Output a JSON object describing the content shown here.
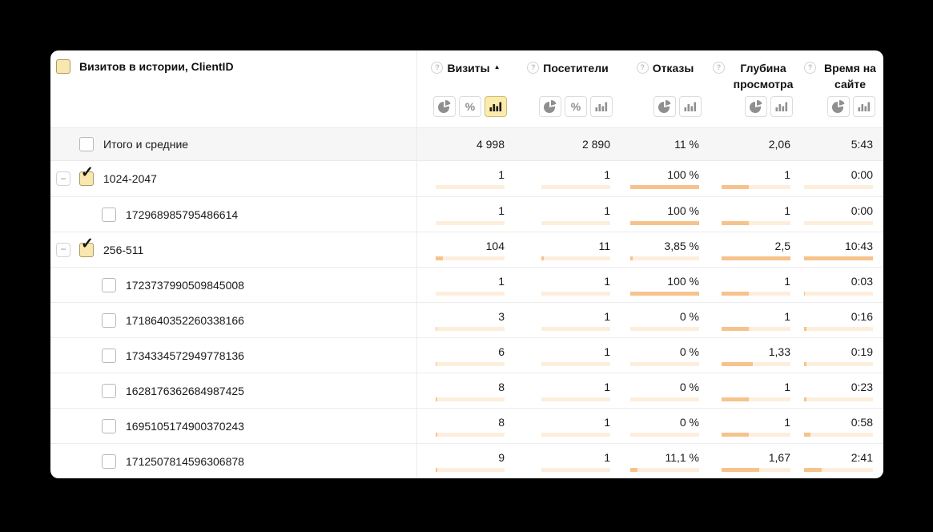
{
  "page": {
    "background": "#000000"
  },
  "icons": {
    "help_glyph": "?",
    "sort_asc_glyph": "▲",
    "minus_glyph": "−",
    "percent_glyph": "%",
    "checkmark_glyph": "✓"
  },
  "colors": {
    "bar_fill": "#f6c38c",
    "bar_track": "#fdeedc",
    "active_toggle_bg": "#fcecab",
    "active_toggle_border": "#cdbd74",
    "checked_checkbox_bg": "#f8e8b0",
    "totals_bg": "#f6f6f6",
    "row_border": "#ececec"
  },
  "panel": {
    "title": "Визитов в истории, ClientID",
    "title_checkbox_checked": true,
    "columns": [
      {
        "id": "visits",
        "label": "Визиты",
        "help_icon": true,
        "sort": "asc",
        "toggles": [
          {
            "type": "pie",
            "active": false
          },
          {
            "type": "percent",
            "active": false
          },
          {
            "type": "bars",
            "active": true
          }
        ]
      },
      {
        "id": "visitors",
        "label": "Посетители",
        "help_icon": true,
        "sort": null,
        "toggles": [
          {
            "type": "pie",
            "active": false
          },
          {
            "type": "percent",
            "active": false
          },
          {
            "type": "bars",
            "active": false
          }
        ]
      },
      {
        "id": "bounces",
        "label": "Отказы",
        "help_icon": true,
        "sort": null,
        "toggles": [
          {
            "type": "pie",
            "active": false
          },
          {
            "type": "bars",
            "active": false
          }
        ]
      },
      {
        "id": "depth",
        "label": "Глубина просмотра",
        "help_icon": true,
        "sort": null,
        "toggles": [
          {
            "type": "pie",
            "active": false
          },
          {
            "type": "bars",
            "active": false
          }
        ]
      },
      {
        "id": "time",
        "label": "Время на сайте",
        "help_icon": true,
        "sort": null,
        "toggles": [
          {
            "type": "pie",
            "active": false
          },
          {
            "type": "bars",
            "active": false
          }
        ]
      }
    ],
    "totals_row": {
      "label": "Итого и средние",
      "checkbox_checked": false,
      "values": [
        "4 998",
        "2 890",
        "11 %",
        "2,06",
        "5:43"
      ]
    },
    "rows": [
      {
        "level": "group",
        "expandable": true,
        "checked": true,
        "label": "1024-2047",
        "cells": [
          {
            "value": "1",
            "fill": 0
          },
          {
            "value": "1",
            "fill": 0
          },
          {
            "value": "100 %",
            "fill": 100
          },
          {
            "value": "1",
            "fill": 40
          },
          {
            "value": "0:00",
            "fill": 0
          }
        ]
      },
      {
        "level": "child",
        "expandable": false,
        "checked": false,
        "label": "172968985795486614",
        "cells": [
          {
            "value": "1",
            "fill": 0
          },
          {
            "value": "1",
            "fill": 0
          },
          {
            "value": "100 %",
            "fill": 100
          },
          {
            "value": "1",
            "fill": 40
          },
          {
            "value": "0:00",
            "fill": 0
          }
        ]
      },
      {
        "level": "group",
        "expandable": true,
        "checked": true,
        "label": "256-511",
        "cells": [
          {
            "value": "104",
            "fill": 11
          },
          {
            "value": "11",
            "fill": 3
          },
          {
            "value": "3,85 %",
            "fill": 4
          },
          {
            "value": "2,5",
            "fill": 100
          },
          {
            "value": "10:43",
            "fill": 100
          }
        ]
      },
      {
        "level": "child",
        "expandable": false,
        "checked": false,
        "label": "1723737990509845008",
        "cells": [
          {
            "value": "1",
            "fill": 0
          },
          {
            "value": "1",
            "fill": 0
          },
          {
            "value": "100 %",
            "fill": 100
          },
          {
            "value": "1",
            "fill": 40
          },
          {
            "value": "0:03",
            "fill": 1
          }
        ]
      },
      {
        "level": "child",
        "expandable": false,
        "checked": false,
        "label": "1718640352260338166",
        "cells": [
          {
            "value": "3",
            "fill": 1
          },
          {
            "value": "1",
            "fill": 0
          },
          {
            "value": "0 %",
            "fill": 0
          },
          {
            "value": "1",
            "fill": 40
          },
          {
            "value": "0:16",
            "fill": 3
          }
        ]
      },
      {
        "level": "child",
        "expandable": false,
        "checked": false,
        "label": "1734334572949778136",
        "cells": [
          {
            "value": "6",
            "fill": 1
          },
          {
            "value": "1",
            "fill": 0
          },
          {
            "value": "0 %",
            "fill": 0
          },
          {
            "value": "1,33",
            "fill": 45
          },
          {
            "value": "0:19",
            "fill": 3
          }
        ]
      },
      {
        "level": "child",
        "expandable": false,
        "checked": false,
        "label": "1628176362684987425",
        "cells": [
          {
            "value": "8",
            "fill": 2
          },
          {
            "value": "1",
            "fill": 0
          },
          {
            "value": "0 %",
            "fill": 0
          },
          {
            "value": "1",
            "fill": 40
          },
          {
            "value": "0:23",
            "fill": 4
          }
        ]
      },
      {
        "level": "child",
        "expandable": false,
        "checked": false,
        "label": "1695105174900370243",
        "cells": [
          {
            "value": "8",
            "fill": 2
          },
          {
            "value": "1",
            "fill": 0
          },
          {
            "value": "0 %",
            "fill": 0
          },
          {
            "value": "1",
            "fill": 40
          },
          {
            "value": "0:58",
            "fill": 9
          }
        ]
      },
      {
        "level": "child",
        "expandable": false,
        "checked": false,
        "label": "1712507814596306878",
        "cells": [
          {
            "value": "9",
            "fill": 2
          },
          {
            "value": "1",
            "fill": 0
          },
          {
            "value": "11,1 %",
            "fill": 11
          },
          {
            "value": "1,67",
            "fill": 55
          },
          {
            "value": "2:41",
            "fill": 25
          }
        ]
      }
    ]
  }
}
